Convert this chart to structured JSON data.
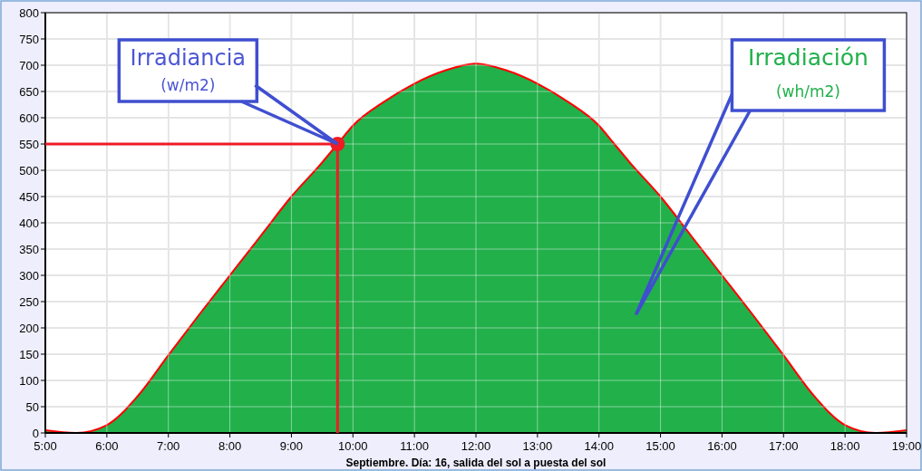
{
  "chart_data": {
    "type": "area",
    "xlabel": "Septiembre. Día: 16, salida del sol a puesta del sol",
    "x": [
      5,
      5.5,
      6,
      6.5,
      7,
      7.5,
      8,
      8.5,
      9,
      9.5,
      9.75,
      10,
      10.5,
      11,
      11.5,
      12,
      12.5,
      13,
      13.5,
      14,
      14.25,
      14.5,
      15,
      15.5,
      16,
      16.5,
      17,
      17.5,
      18,
      18.5,
      19
    ],
    "series": [
      {
        "color": "#22b04b",
        "values": [
          5,
          0,
          15,
          70,
          148,
          225,
          300,
          375,
          450,
          515,
          550,
          585,
          630,
          665,
          690,
          703,
          690,
          665,
          630,
          585,
          550,
          515,
          450,
          375,
          300,
          225,
          148,
          70,
          15,
          0,
          5
        ]
      }
    ],
    "xlim": [
      5,
      19
    ],
    "xticks": [
      {
        "value": 5,
        "label": "5:00"
      },
      {
        "value": 6,
        "label": "6:00"
      },
      {
        "value": 7,
        "label": "7:00"
      },
      {
        "value": 8,
        "label": "8:00"
      },
      {
        "value": 9,
        "label": "9:00"
      },
      {
        "value": 10,
        "label": "10:00"
      },
      {
        "value": 11,
        "label": "11:00"
      },
      {
        "value": 12,
        "label": "12:00"
      },
      {
        "value": 13,
        "label": "13:00"
      },
      {
        "value": 14,
        "label": "14:00"
      },
      {
        "value": 15,
        "label": "15:00"
      },
      {
        "value": 16,
        "label": "16:00"
      },
      {
        "value": 17,
        "label": "17:00"
      },
      {
        "value": 18,
        "label": "18:00"
      },
      {
        "value": 19,
        "label": "19:00"
      }
    ],
    "ylim": [
      0,
      800
    ],
    "yticks": [
      0,
      50,
      100,
      150,
      200,
      250,
      300,
      350,
      400,
      450,
      500,
      550,
      600,
      650,
      700,
      750,
      800
    ],
    "grid": true,
    "ref_lines": [
      {
        "axis": "y",
        "value": 550,
        "color": "#ee1c24"
      },
      {
        "axis": "x",
        "value": 9.75,
        "color": "#ee1c24"
      }
    ],
    "annotations": [
      "Irradiancia (w/m2)",
      "Irradiación (wh/m2)"
    ]
  }
}
